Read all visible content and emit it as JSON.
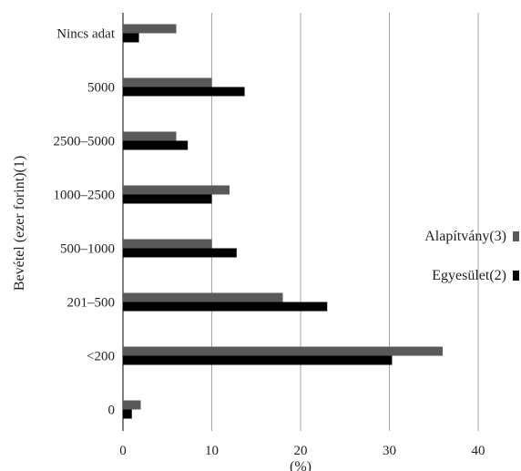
{
  "chart_data": {
    "type": "bar",
    "orientation": "horizontal",
    "categories": [
      "Nincs adat",
      "5000",
      "2500–5000",
      "1000–2500",
      "500–1000",
      "201–500",
      "<200",
      "0"
    ],
    "series": [
      {
        "name": "Alapítvány(3)",
        "color": "#595959",
        "values": [
          6,
          10,
          6,
          12,
          10,
          18,
          36,
          2
        ]
      },
      {
        "name": "Egyesület(2)",
        "color": "#000000",
        "values": [
          1.8,
          13.7,
          7.3,
          10,
          12.8,
          23,
          30.3,
          1
        ]
      }
    ],
    "xlabel": "(%)",
    "ylabel": "Bevétel (ezer forint)(1)",
    "xlim": [
      0,
      40
    ],
    "xticks": [
      "0",
      "10",
      "20",
      "30",
      "40"
    ],
    "grid": "vertical",
    "legend": "right"
  }
}
